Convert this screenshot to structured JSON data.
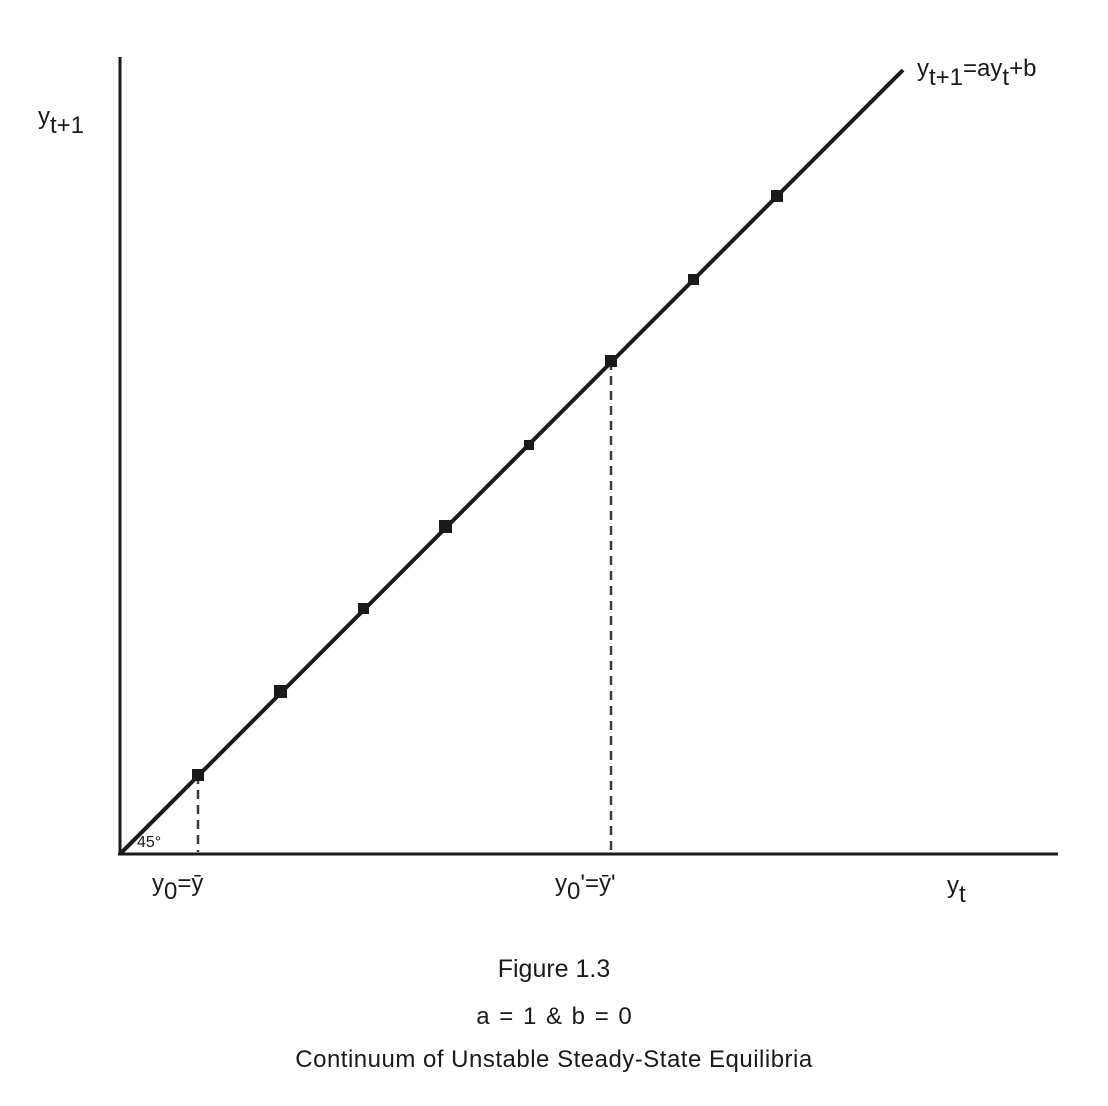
{
  "axes": {
    "y_label": "y",
    "y_label_sub": "t+1",
    "x_label": "y",
    "x_label_sub": "t"
  },
  "line": {
    "label_y": "y",
    "label_sub1": "t+1",
    "label_eq": "=ay",
    "label_sub2": "t",
    "label_tail": "+b"
  },
  "angle": {
    "label": "45°"
  },
  "markers": {
    "first": {
      "base": "y",
      "sub": "0",
      "rest": "=ȳ"
    },
    "second": {
      "base": "y",
      "sub": "0",
      "rest": "'=ȳ'"
    }
  },
  "caption": {
    "figure": "Figure 1.3",
    "params": "a = 1 & b = 0",
    "subtitle": "Continuum of Unstable Steady-State Equilibria"
  },
  "colors": {
    "ink": "#1a1a1a",
    "dash": "#3a3a3a"
  }
}
